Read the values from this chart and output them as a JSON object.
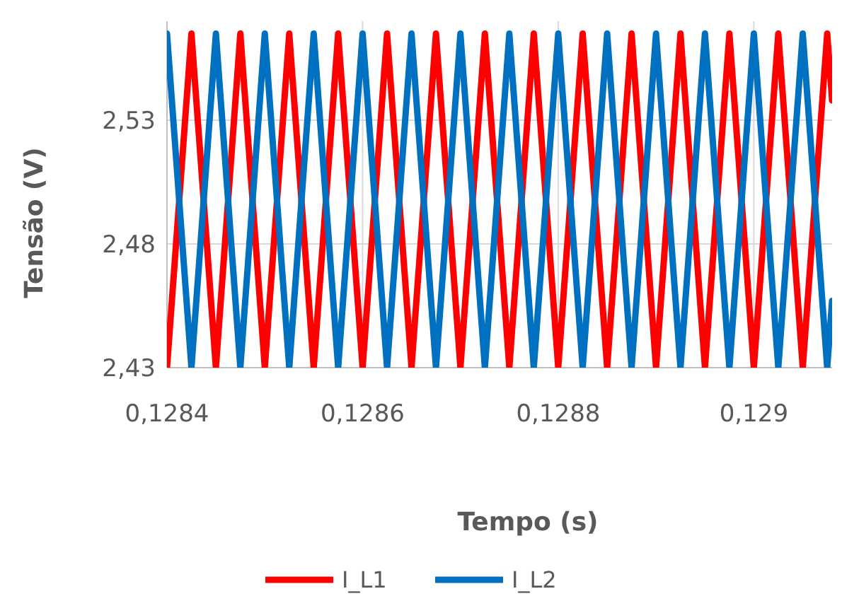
{
  "chart_data": {
    "type": "line",
    "xlabel": "Tempo (s)",
    "ylabel": "Tensão (V)",
    "x": [
      0.1284,
      0.128425,
      0.12845,
      0.128475,
      0.1285,
      0.128525,
      0.12855,
      0.128575,
      0.1286,
      0.128625,
      0.12865,
      0.128675,
      0.1287,
      0.128725,
      0.12875,
      0.128775,
      0.1288,
      0.128825,
      0.12885,
      0.128875,
      0.1289,
      0.128925,
      0.12895,
      0.128975,
      0.129,
      0.129025,
      0.12905,
      0.129075,
      0.12908
    ],
    "series": [
      {
        "name": "I_L1",
        "color": "#ff0000",
        "values": [
          2.43,
          2.565,
          2.43,
          2.565,
          2.43,
          2.565,
          2.43,
          2.565,
          2.43,
          2.565,
          2.43,
          2.565,
          2.43,
          2.565,
          2.43,
          2.565,
          2.43,
          2.565,
          2.43,
          2.565,
          2.43,
          2.565,
          2.43,
          2.565,
          2.43,
          2.565,
          2.43,
          2.565,
          2.538
        ]
      },
      {
        "name": "I_L2",
        "color": "#0070c0",
        "values": [
          2.565,
          2.43,
          2.565,
          2.43,
          2.565,
          2.43,
          2.565,
          2.43,
          2.565,
          2.43,
          2.565,
          2.43,
          2.565,
          2.43,
          2.565,
          2.43,
          2.565,
          2.43,
          2.565,
          2.43,
          2.565,
          2.43,
          2.565,
          2.43,
          2.565,
          2.43,
          2.565,
          2.43,
          2.457
        ]
      }
    ],
    "xlim": [
      0.1284,
      0.12908
    ],
    "xticks": [
      {
        "value": 0.1284,
        "label": "0,1284"
      },
      {
        "value": 0.1286,
        "label": "0,1286"
      },
      {
        "value": 0.1288,
        "label": "0,1288"
      },
      {
        "value": 0.129,
        "label": "0,129"
      }
    ],
    "ylim": [
      2.43,
      2.57
    ],
    "yticks": [
      {
        "value": 2.43,
        "label": "2,43"
      },
      {
        "value": 2.48,
        "label": "2,48"
      },
      {
        "value": 2.53,
        "label": "2,53"
      }
    ],
    "grid": true,
    "legend": "bottom",
    "marker": "none",
    "line_style": "solid"
  }
}
